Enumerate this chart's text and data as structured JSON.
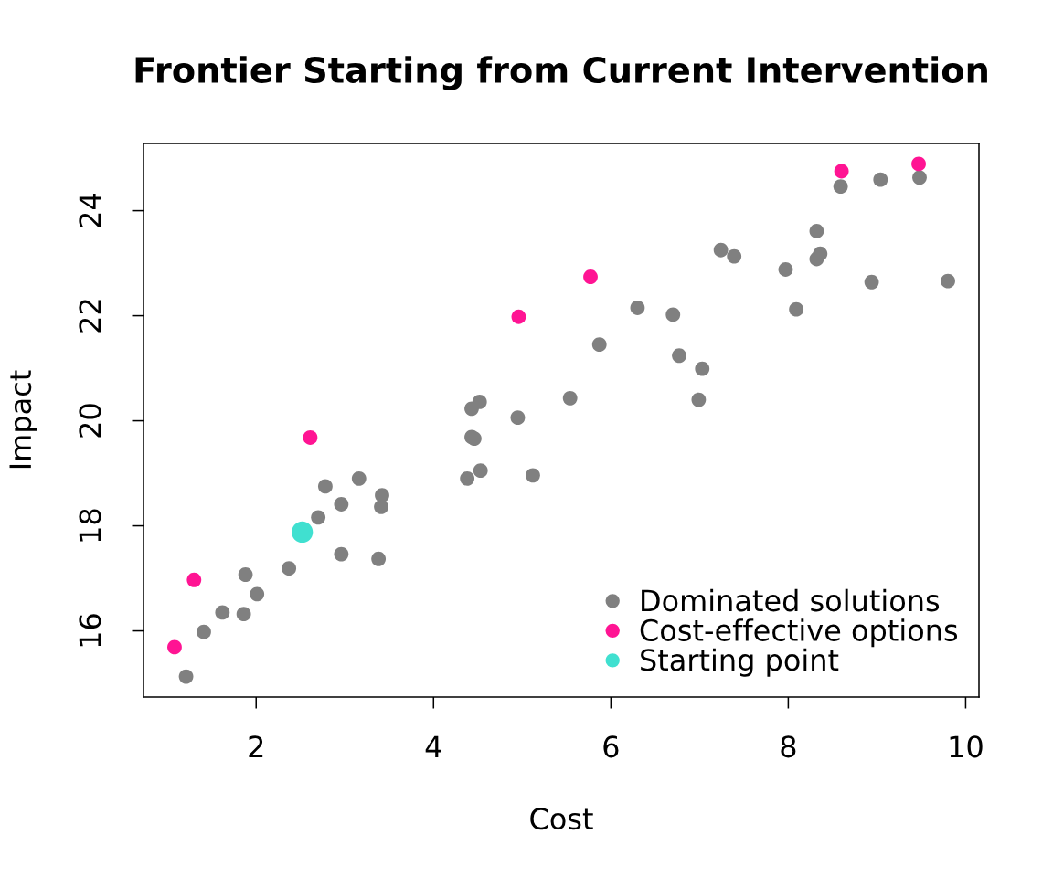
{
  "chart_data": {
    "type": "scatter",
    "title": "Frontier Starting from Current Intervention",
    "xlabel": "Cost",
    "ylabel": "Impact",
    "xlim": [
      0.73,
      10.15
    ],
    "ylim": [
      14.74,
      25.28
    ],
    "xticks": [
      2,
      4,
      6,
      8,
      10
    ],
    "yticks": [
      16,
      18,
      20,
      22,
      24
    ],
    "legend": "bottom right",
    "marker": "circle",
    "series": [
      {
        "name": "Dominated solutions",
        "color": "#808080",
        "x": [
          1.21,
          1.41,
          1.62,
          1.86,
          1.88,
          2.01,
          2.37,
          2.7,
          2.78,
          2.96,
          2.96,
          3.16,
          3.42,
          3.41,
          3.38,
          4.38,
          4.43,
          4.52,
          4.43,
          4.46,
          4.53,
          4.95,
          5.12,
          5.54,
          5.87,
          6.3,
          6.7,
          6.77,
          7.03,
          6.99,
          7.24,
          7.39,
          7.97,
          8.09,
          8.94,
          9.8,
          8.32,
          8.36,
          8.32,
          8.59,
          9.04,
          9.48
        ],
        "values": [
          15.13,
          15.98,
          16.35,
          16.32,
          17.07,
          16.7,
          17.19,
          18.16,
          18.75,
          18.41,
          17.46,
          18.9,
          18.58,
          18.36,
          17.37,
          18.9,
          20.23,
          20.36,
          19.69,
          19.66,
          19.05,
          20.06,
          18.96,
          20.43,
          21.45,
          22.15,
          22.02,
          21.24,
          20.99,
          20.4,
          23.25,
          23.13,
          22.88,
          22.12,
          22.64,
          22.66,
          23.61,
          23.18,
          23.08,
          24.46,
          24.59,
          24.63
        ]
      },
      {
        "name": "Cost-effective options",
        "color": "#ff1493",
        "x": [
          1.08,
          1.3,
          2.61,
          4.96,
          5.77,
          8.6,
          9.47
        ],
        "values": [
          15.69,
          16.97,
          19.68,
          21.98,
          22.74,
          24.75,
          24.89
        ]
      },
      {
        "name": "Starting point",
        "color": "#40e0d0",
        "x": [
          2.52
        ],
        "values": [
          17.88
        ]
      }
    ]
  }
}
